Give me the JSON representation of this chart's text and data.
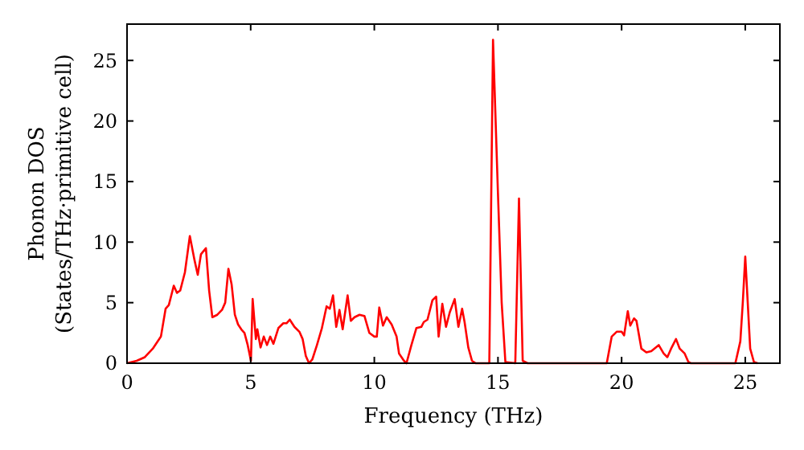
{
  "chart_data": {
    "type": "line",
    "xlabel": "Frequency (THz)",
    "ylabel": "Phonon DOS\n(States/THz·primitive cell)",
    "xlim": [
      0,
      26.4
    ],
    "ylim": [
      0,
      28
    ],
    "xticks": [
      0,
      5,
      10,
      15,
      20,
      25
    ],
    "yticks": [
      0,
      5,
      10,
      15,
      20,
      25
    ],
    "grid": false,
    "marker": "none",
    "line_style": "solid",
    "series": [
      {
        "color": "#ff0000",
        "x": [
          0,
          0.39,
          0.72,
          1.04,
          1.37,
          1.56,
          1.69,
          1.89,
          2.02,
          2.15,
          2.34,
          2.54,
          2.73,
          2.86,
          2.99,
          3.19,
          3.32,
          3.45,
          3.65,
          3.84,
          3.97,
          4.1,
          4.23,
          4.36,
          4.49,
          4.62,
          4.75,
          4.88,
          5.01,
          5.08,
          5.21,
          5.27,
          5.4,
          5.53,
          5.66,
          5.79,
          5.92,
          6.12,
          6.32,
          6.45,
          6.58,
          6.77,
          6.97,
          7.1,
          7.23,
          7.36,
          7.49,
          7.68,
          7.88,
          8.07,
          8.2,
          8.33,
          8.46,
          8.59,
          8.72,
          8.92,
          9.05,
          9.2,
          9.4,
          9.6,
          9.8,
          10,
          10.1,
          10.2,
          10.35,
          10.5,
          10.7,
          10.9,
          11,
          11.2,
          11.3,
          11.5,
          11.7,
          11.9,
          12,
          12.15,
          12.35,
          12.5,
          12.6,
          12.75,
          12.9,
          13.05,
          13.25,
          13.4,
          13.55,
          13.65,
          13.8,
          13.95,
          14.1,
          14.65,
          14.8,
          15,
          15.15,
          15.3,
          15.7,
          15.85,
          16,
          16.2,
          19.4,
          19.6,
          19.8,
          20,
          20.1,
          20.25,
          20.35,
          20.5,
          20.6,
          20.8,
          21,
          21.2,
          21.5,
          21.7,
          21.85,
          22,
          22.2,
          22.35,
          22.55,
          22.7,
          22.8,
          24.6,
          24.8,
          24.9,
          25,
          25.1,
          25.2,
          25.35,
          25.5
        ],
        "values": [
          0,
          0.2,
          0.5,
          1.2,
          2.2,
          4.5,
          4.8,
          6.4,
          5.8,
          6,
          7.5,
          10.5,
          8.5,
          7.3,
          9,
          9.5,
          6,
          3.8,
          4,
          4.4,
          5,
          7.8,
          6.5,
          4,
          3.2,
          2.8,
          2.5,
          1.5,
          0.2,
          5.3,
          2,
          2.8,
          1.3,
          2.2,
          1.5,
          2.2,
          1.6,
          2.9,
          3.3,
          3.3,
          3.6,
          3,
          2.6,
          2,
          0.6,
          0,
          0.3,
          1.5,
          2.9,
          4.7,
          4.5,
          5.6,
          3,
          4.4,
          2.8,
          5.6,
          3.5,
          3.8,
          4,
          3.9,
          2.5,
          2.2,
          2.2,
          4.6,
          3.1,
          3.8,
          3.2,
          2.2,
          0.8,
          0.2,
          0,
          1.5,
          2.9,
          3,
          3.4,
          3.6,
          5.2,
          5.5,
          2.2,
          4.9,
          3,
          4.2,
          5.3,
          3,
          4.5,
          3.4,
          1.3,
          0.2,
          0,
          0,
          26.7,
          14,
          5,
          0.1,
          0,
          13.6,
          0.2,
          0,
          0,
          2.2,
          2.6,
          2.6,
          2.3,
          4.3,
          3.1,
          3.7,
          3.5,
          1.2,
          0.9,
          1,
          1.5,
          0.8,
          0.5,
          1.2,
          2,
          1.2,
          0.8,
          0.1,
          0,
          0,
          1.8,
          5,
          8.8,
          5,
          1.2,
          0.1,
          0
        ]
      }
    ]
  }
}
